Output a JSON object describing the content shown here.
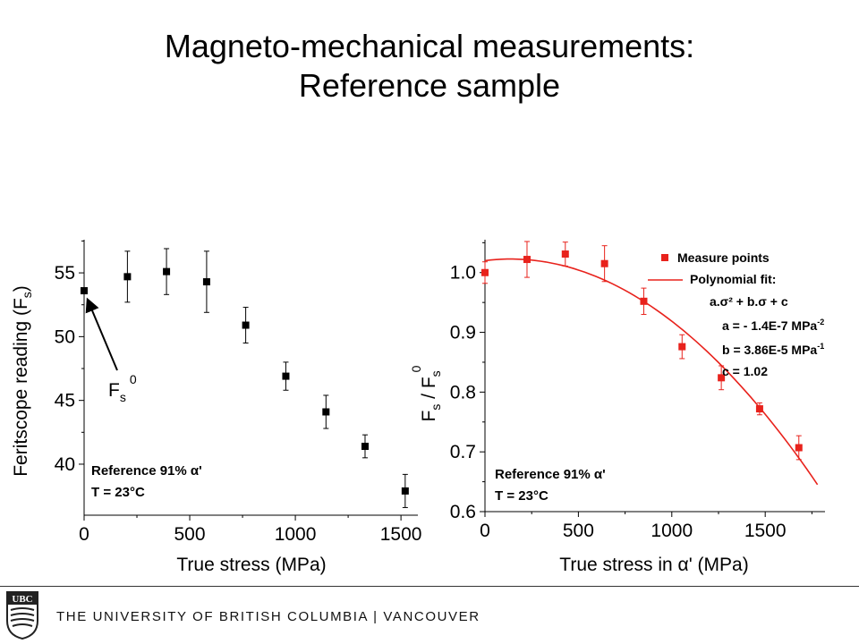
{
  "slide": {
    "title_line1": "Magneto-mechanical measurements:",
    "title_line2": "Reference sample"
  },
  "footer": {
    "university": "THE UNIVERSITY OF BRITISH COLUMBIA | VANCOUVER",
    "logo_text": "UBC"
  },
  "chart_data": [
    {
      "type": "scatter",
      "title": "",
      "xlabel": "True stress (MPa)",
      "ylabel": "Feritscope reading (F",
      "ylabel_sub": "s",
      "ylabel_end": ")",
      "xlim": [
        0,
        1580
      ],
      "ylim": [
        36,
        57.6
      ],
      "xticks": [
        0,
        500,
        1000,
        1500
      ],
      "yticks": [
        40,
        45,
        50,
        55
      ],
      "grid": false,
      "series": [
        {
          "marker": "square",
          "color": "#000000",
          "points": [
            {
              "x": 0,
              "y": 53.6,
              "err": 0
            },
            {
              "x": 205,
              "y": 54.7,
              "err": 2.0
            },
            {
              "x": 390,
              "y": 55.1,
              "err": 1.8
            },
            {
              "x": 580,
              "y": 54.3,
              "err": 2.4
            },
            {
              "x": 765,
              "y": 50.9,
              "err": 1.4
            },
            {
              "x": 955,
              "y": 46.9,
              "err": 1.1
            },
            {
              "x": 1145,
              "y": 44.1,
              "err": 1.3
            },
            {
              "x": 1330,
              "y": 41.4,
              "err": 0.9
            },
            {
              "x": 1520,
              "y": 37.9,
              "err": 1.3
            }
          ]
        }
      ],
      "annotations": {
        "arrow_label": "F",
        "arrow_label_sub": "s",
        "arrow_label_sup": "0",
        "info_reference": "Reference 91% α'",
        "info_temperature": "T = 23°C"
      }
    },
    {
      "type": "scatter",
      "title": "",
      "xlabel": "True stress in α' (MPa)",
      "ylabel": "F",
      "ylabel_sub1": "s",
      "ylabel_mid": " / F",
      "ylabel_sub2": "s",
      "ylabel_sup": "0",
      "xlim": [
        0,
        1820
      ],
      "ylim": [
        0.6,
        1.055
      ],
      "xticks": [
        0,
        500,
        1000,
        1500
      ],
      "yticks": [
        0.6,
        0.7,
        0.8,
        0.9,
        1.0
      ],
      "ytick_labels": [
        "0.6",
        "0.7",
        "0.8",
        "0.9",
        "1.0"
      ],
      "grid": false,
      "series": [
        {
          "name": "Measure points",
          "marker": "square",
          "color": "#e8221c",
          "points": [
            {
              "x": 0,
              "y": 1.0,
              "err": 0.018
            },
            {
              "x": 225,
              "y": 1.022,
              "err": 0.03
            },
            {
              "x": 430,
              "y": 1.031,
              "err": 0.02
            },
            {
              "x": 640,
              "y": 1.015,
              "err": 0.03
            },
            {
              "x": 850,
              "y": 0.952,
              "err": 0.022
            },
            {
              "x": 1055,
              "y": 0.876,
              "err": 0.02
            },
            {
              "x": 1265,
              "y": 0.824,
              "err": 0.02
            },
            {
              "x": 1470,
              "y": 0.772,
              "err": 0.01
            },
            {
              "x": 1680,
              "y": 0.707,
              "err": 0.02
            }
          ]
        },
        {
          "name": "Polynomial fit:",
          "type": "line",
          "color": "#e8221c",
          "a": -1.4e-07,
          "b": 3.86e-05,
          "c": 1.02,
          "x_range": [
            0,
            1780
          ]
        }
      ],
      "legend": {
        "placement": "top-right",
        "fit_formula": "a.σ² + b.σ + c",
        "param_a": "a = - 1.4E-7 MPa",
        "param_a_exp": "-2",
        "param_b": "b = 3.86E-5 MPa",
        "param_b_exp": "-1",
        "param_c": "c = 1.02"
      },
      "annotations": {
        "info_reference": "Reference 91% α'",
        "info_temperature": "T = 23°C"
      }
    }
  ]
}
